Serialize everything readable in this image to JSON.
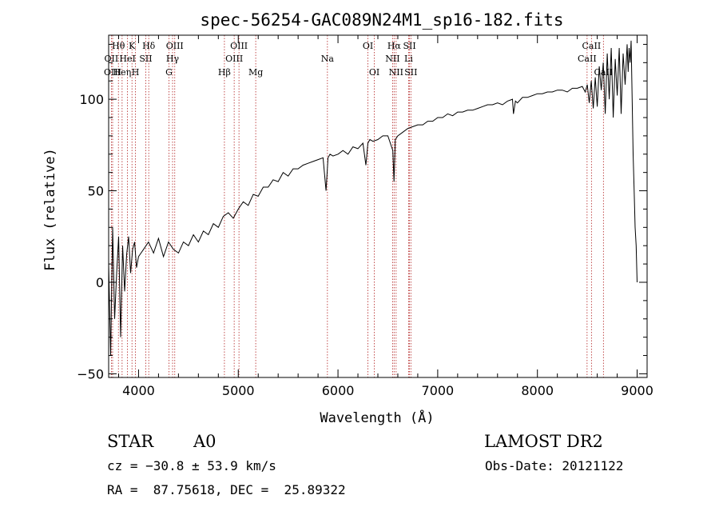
{
  "chart_data": {
    "type": "line",
    "title": "spec-56254-GAC089N24M1_sp16-182.fits",
    "xlabel": "Wavelength (Å)",
    "ylabel": "Flux (relative)",
    "xlim": [
      3700,
      9100
    ],
    "ylim": [
      -52,
      135
    ],
    "x_ticks": [
      {
        "value": 4000,
        "label": "4000"
      },
      {
        "value": 5000,
        "label": "5000"
      },
      {
        "value": 6000,
        "label": "6000"
      },
      {
        "value": 7000,
        "label": "7000"
      },
      {
        "value": 8000,
        "label": "8000"
      },
      {
        "value": 9000,
        "label": "9000"
      }
    ],
    "y_ticks": [
      {
        "value": -50,
        "label": "−50"
      },
      {
        "value": 0,
        "label": "0"
      },
      {
        "value": 50,
        "label": "50"
      },
      {
        "value": 100,
        "label": "100"
      }
    ],
    "grid": false,
    "series": [
      {
        "color": "#000000",
        "x": [
          3700,
          3720,
          3740,
          3760,
          3780,
          3800,
          3820,
          3840,
          3860,
          3880,
          3900,
          3920,
          3940,
          3960,
          3980,
          4000,
          4050,
          4100,
          4150,
          4200,
          4250,
          4300,
          4350,
          4400,
          4450,
          4500,
          4550,
          4600,
          4650,
          4700,
          4750,
          4800,
          4850,
          4900,
          4950,
          5000,
          5050,
          5100,
          5150,
          5200,
          5250,
          5300,
          5350,
          5400,
          5450,
          5500,
          5550,
          5600,
          5650,
          5700,
          5750,
          5800,
          5850,
          5880,
          5900,
          5920,
          5950,
          6000,
          6050,
          6100,
          6150,
          6200,
          6250,
          6280,
          6300,
          6320,
          6350,
          6400,
          6450,
          6500,
          6550,
          6562,
          6575,
          6600,
          6650,
          6700,
          6750,
          6800,
          6850,
          6900,
          6950,
          7000,
          7050,
          7100,
          7150,
          7200,
          7250,
          7300,
          7350,
          7400,
          7450,
          7500,
          7550,
          7600,
          7650,
          7700,
          7750,
          7760,
          7780,
          7800,
          7850,
          7900,
          7950,
          8000,
          8050,
          8100,
          8150,
          8200,
          8250,
          8300,
          8350,
          8400,
          8450,
          8480,
          8500,
          8520,
          8540,
          8560,
          8580,
          8600,
          8620,
          8640,
          8660,
          8680,
          8700,
          8720,
          8740,
          8760,
          8780,
          8800,
          8820,
          8840,
          8860,
          8880,
          8900,
          8910,
          8920,
          8930,
          8940,
          8950,
          8960,
          8970,
          8980,
          8990,
          9000
        ],
        "y": [
          10,
          -40,
          30,
          -20,
          5,
          25,
          -30,
          20,
          -5,
          15,
          25,
          5,
          18,
          22,
          8,
          14,
          18,
          22,
          16,
          24,
          14,
          22,
          18,
          16,
          22,
          20,
          26,
          22,
          28,
          26,
          32,
          30,
          36,
          38,
          35,
          40,
          44,
          42,
          48,
          47,
          52,
          52,
          56,
          55,
          60,
          58,
          62,
          62,
          64,
          65,
          66,
          67,
          68,
          50,
          68,
          70,
          69,
          70,
          72,
          70,
          74,
          73,
          76,
          64,
          76,
          78,
          77,
          78,
          80,
          80,
          72,
          55,
          78,
          80,
          82,
          84,
          85,
          86,
          86,
          88,
          88,
          90,
          90,
          92,
          91,
          93,
          93,
          94,
          94,
          95,
          96,
          97,
          97,
          98,
          97,
          99,
          100,
          92,
          99,
          98,
          101,
          101,
          102,
          103,
          103,
          104,
          104,
          105,
          105,
          104,
          106,
          106,
          107,
          104,
          108,
          98,
          110,
          95,
          112,
          96,
          118,
          105,
          120,
          92,
          125,
          100,
          128,
          90,
          122,
          102,
          128,
          92,
          125,
          108,
          130,
          115,
          128,
          120,
          132,
          100,
          70,
          50,
          30,
          20,
          0
        ]
      }
    ],
    "line_features": [
      {
        "label": "Hθ",
        "wavelength": 3798,
        "row": 0
      },
      {
        "label": "OII",
        "wavelength": 3727,
        "row": 1
      },
      {
        "label": "OIII",
        "wavelength": 3740,
        "row": 2
      },
      {
        "label": "Heη",
        "wavelength": 3835,
        "row": 2
      },
      {
        "label": "HeI",
        "wavelength": 3889,
        "row": 1
      },
      {
        "label": "K",
        "wavelength": 3934,
        "row": 0
      },
      {
        "label": "H",
        "wavelength": 3969,
        "row": 2
      },
      {
        "label": "SII",
        "wavelength": 4072,
        "row": 1
      },
      {
        "label": "Hδ",
        "wavelength": 4102,
        "row": 0
      },
      {
        "label": "G",
        "wavelength": 4305,
        "row": 2
      },
      {
        "label": "Hγ",
        "wavelength": 4341,
        "row": 1
      },
      {
        "label": "OIII",
        "wavelength": 4363,
        "row": 0
      },
      {
        "label": "Hβ",
        "wavelength": 4861,
        "row": 2
      },
      {
        "label": "OIII",
        "wavelength": 4959,
        "row": 1
      },
      {
        "label": "OIII",
        "wavelength": 5007,
        "row": 0
      },
      {
        "label": "Mg",
        "wavelength": 5175,
        "row": 2
      },
      {
        "label": "Na",
        "wavelength": 5894,
        "row": 1
      },
      {
        "label": "OI",
        "wavelength": 6300,
        "row": 0
      },
      {
        "label": "OI",
        "wavelength": 6364,
        "row": 2
      },
      {
        "label": "NII",
        "wavelength": 6548,
        "row": 1
      },
      {
        "label": "Hα",
        "wavelength": 6563,
        "row": 0
      },
      {
        "label": "NII",
        "wavelength": 6583,
        "row": 2
      },
      {
        "label": "Li",
        "wavelength": 6708,
        "row": 1
      },
      {
        "label": "SII",
        "wavelength": 6717,
        "row": 0
      },
      {
        "label": "SII",
        "wavelength": 6731,
        "row": 2
      },
      {
        "label": "CaII",
        "wavelength": 8498,
        "row": 1
      },
      {
        "label": "CaII",
        "wavelength": 8542,
        "row": 0
      },
      {
        "label": "CaII",
        "wavelength": 8662,
        "row": 2
      }
    ]
  },
  "info": {
    "object_class": "STAR",
    "subclass": "A0",
    "survey": "LAMOST DR2",
    "redshift_line": "cz = −30.8 ± 53.9 km/s",
    "obs_date_line": "Obs-Date: 20121122",
    "coords_line": "RA =  87.75618, DEC =  25.89322"
  }
}
